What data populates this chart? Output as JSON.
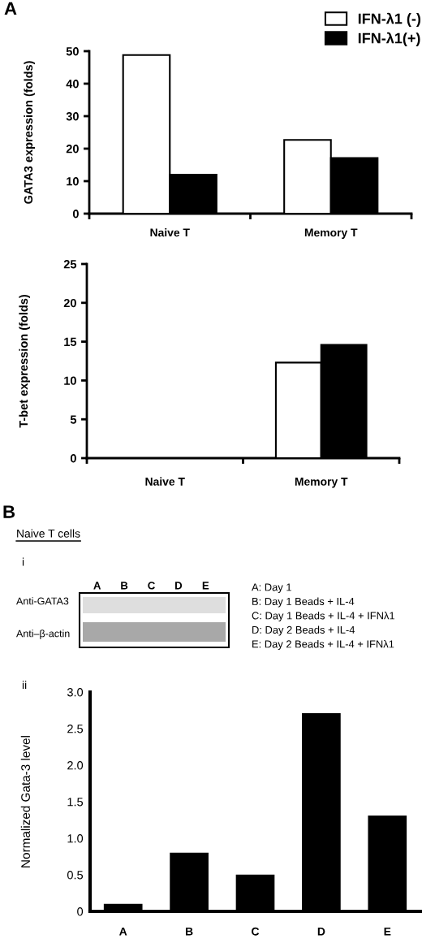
{
  "chart_data": [
    {
      "type": "bar",
      "categories": [
        "Naive T",
        "Memory T"
      ],
      "ylabel": "GATA3 expression (folds)",
      "ylim": [
        0,
        50
      ],
      "yticks": [
        0,
        10,
        20,
        30,
        40,
        50
      ],
      "legend": "top right",
      "annotations": [
        "A"
      ],
      "series": [
        {
          "name": "IFN-λ1 (-)",
          "color": "#ffffff",
          "values": [
            48.8,
            22.7
          ]
        },
        {
          "name": "IFN-λ1(+)",
          "color": "#000000",
          "values": [
            12.0,
            17.1
          ]
        }
      ]
    },
    {
      "type": "bar",
      "categories": [
        "Naive T",
        "Memory T"
      ],
      "ylabel": "T-bet expression (folds)",
      "ylim": [
        0,
        25
      ],
      "yticks": [
        0,
        5,
        10,
        15,
        20,
        25
      ],
      "series": [
        {
          "color": "#ffffff",
          "values": [
            null,
            12.3
          ]
        },
        {
          "color": "#000000",
          "values": [
            null,
            14.6
          ]
        }
      ]
    },
    {
      "type": "other",
      "title": "Naive T cells",
      "categories": [
        "A",
        "B",
        "C",
        "D",
        "E"
      ],
      "y_categories": [
        "Anti-GATA3",
        "Anti–β-actin"
      ],
      "annotations": [
        "B",
        "i",
        "A: Day 1",
        "B: Day 1 Beads + IL-4",
        "C: Day 1 Beads + IL-4 + IFNλ1",
        "D: Day 2 Beads + IL-4",
        "E: Day 2 Beads + IL-4 + IFNλ1"
      ]
    },
    {
      "type": "bar",
      "categories": [
        "A",
        "B",
        "C",
        "D",
        "E"
      ],
      "ylabel": "Normalized Gata-3 level",
      "ylim": [
        0,
        3
      ],
      "yticks": [
        0,
        0.5,
        {
          "value": 1,
          "label": "1.0"
        },
        1.5,
        {
          "value": 2,
          "label": "2.0"
        },
        2.5,
        {
          "value": 3,
          "label": "3.0"
        }
      ],
      "color": "#000000",
      "values": [
        0.09,
        0.79,
        0.49,
        2.7,
        1.3
      ],
      "annotations": [
        "ii"
      ]
    }
  ]
}
